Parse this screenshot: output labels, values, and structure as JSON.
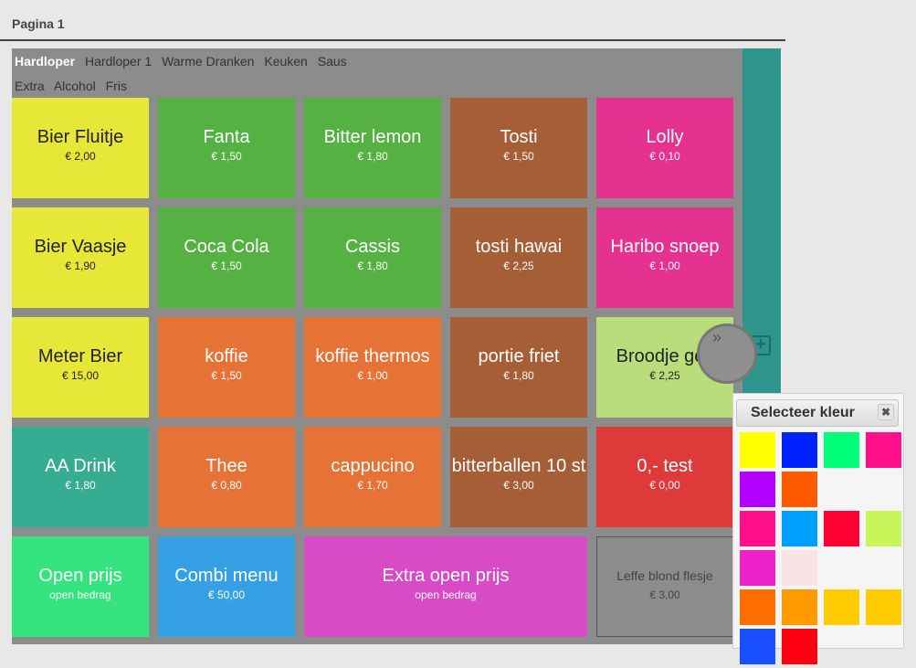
{
  "page": {
    "title": "Pagina 1"
  },
  "tabs_row1": [
    {
      "label": "Hardloper",
      "active": true
    },
    {
      "label": "Hardloper 1",
      "active": false
    },
    {
      "label": "Warme Dranken",
      "active": false
    },
    {
      "label": "Keuken",
      "active": false
    },
    {
      "label": "Saus",
      "active": false
    }
  ],
  "tabs_row2": [
    {
      "label": "Extra",
      "active": false
    },
    {
      "label": "Alcohol",
      "active": false
    },
    {
      "label": "Fris",
      "active": false
    }
  ],
  "products": [
    {
      "name": "Bier Fluitje",
      "price": "€ 2,00",
      "color": "#e7e737"
    },
    {
      "name": "Fanta",
      "price": "€ 1,50",
      "color": "#55b142"
    },
    {
      "name": "Bitter lemon",
      "price": "€ 1,80",
      "color": "#55b142"
    },
    {
      "name": "Tosti",
      "price": "€ 1,50",
      "color": "#a65e37"
    },
    {
      "name": "Lolly",
      "price": "€ 0,10",
      "color": "#e5318f"
    },
    {
      "name": "Bier Vaasje",
      "price": "€ 1,90",
      "color": "#e7e737"
    },
    {
      "name": "Coca Cola",
      "price": "€ 1,50",
      "color": "#55b142"
    },
    {
      "name": "Cassis",
      "price": "€ 1,80",
      "color": "#55b142"
    },
    {
      "name": "tosti hawai",
      "price": "€ 2,25",
      "color": "#a65e37"
    },
    {
      "name": "Haribo snoep",
      "price": "€ 1,00",
      "color": "#e5318f"
    },
    {
      "name": "Meter Bier",
      "price": "€ 15,00",
      "color": "#e7e737"
    },
    {
      "name": "koffie",
      "price": "€ 1,50",
      "color": "#e67235"
    },
    {
      "name": "koffie thermos",
      "price": "€ 1,00",
      "color": "#e67235"
    },
    {
      "name": "portie friet",
      "price": "€ 1,80",
      "color": "#a65e37"
    },
    {
      "name": "Broodje gez",
      "price": "€ 2,25",
      "color": "#b9dd7a"
    },
    {
      "name": "AA Drink",
      "price": "€ 1,80",
      "color": "#36ac93"
    },
    {
      "name": "Thee",
      "price": "€ 0,80",
      "color": "#e67235"
    },
    {
      "name": "cappucino",
      "price": "€ 1,70",
      "color": "#e67235"
    },
    {
      "name": "bitterballen 10 st",
      "price": "€ 3,00",
      "color": "#a65e37"
    },
    {
      "name": "0,- test",
      "price": "€ 0,00",
      "color": "#de3a3a"
    },
    {
      "name": "Open prijs",
      "price": "open bedrag",
      "color": "#35e47e"
    },
    {
      "name": "Combi menu",
      "price": "€ 50,00",
      "color": "#35a0e4"
    },
    {
      "name": "Extra open prijs",
      "price": "open bedrag",
      "color": "#d94ac7"
    },
    {
      "name": "Leffe blond flesje",
      "price": "€ 3,00",
      "color": "#8c8c8c"
    }
  ],
  "handle": {
    "glyph": "»"
  },
  "add_icon": "plus-square-icon",
  "color_picker": {
    "title": "Selecteer kleur",
    "close_glyph": "✖",
    "swatches": [
      [
        "#ffff00",
        "#0022ff",
        "#00ff78",
        "#ff0f8c"
      ],
      [
        "#b300ff",
        "#ff5a00"
      ],
      [
        "#ff0f8c",
        "#00a0ff",
        "#ff0033",
        "#c8f55a"
      ],
      [
        "#ee22cc",
        "#f8e4e4"
      ],
      [
        "#ff6f00",
        "#ff9a00",
        "#ffcc00",
        "#ffcc00"
      ],
      [
        "#1a4fff",
        "#ff0011"
      ]
    ]
  }
}
